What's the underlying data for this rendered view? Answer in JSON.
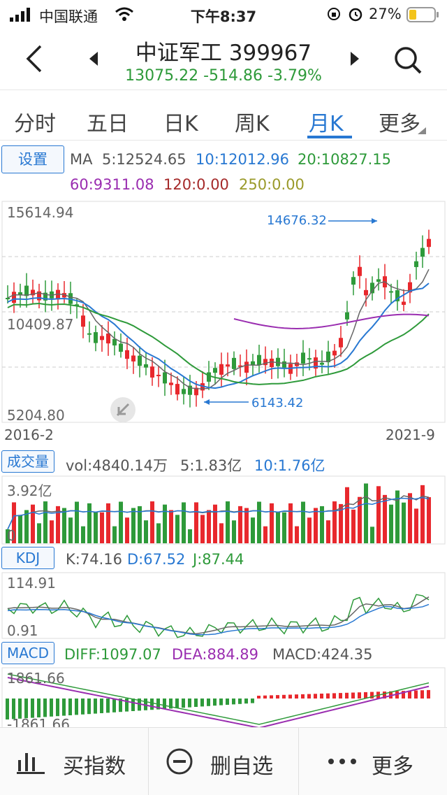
{
  "status_bar": {
    "carrier": "中国联通",
    "time": "下午8:37",
    "battery": "27%"
  },
  "header": {
    "title": "中证军工 399967",
    "quote": "13075.22 -514.86 -3.79%",
    "quote_color": "#2e9a3a"
  },
  "tabs": [
    {
      "label": "分时"
    },
    {
      "label": "五日"
    },
    {
      "label": "日K"
    },
    {
      "label": "周K"
    },
    {
      "label": "月K"
    },
    {
      "label": "更多"
    }
  ],
  "ma": {
    "settings_label": "设置",
    "prefix": "MA",
    "ma5": "5:12524.65",
    "ma10": "10:12012.96",
    "ma20": "20:10827.15",
    "ma60": "60:9311.08",
    "ma120": "120:0.00",
    "ma250": "250:0.00"
  },
  "main_chart": {
    "y_top": "15614.94",
    "y_mid": "10409.87",
    "y_bottom": "5204.80",
    "high_annotation": "14676.32",
    "low_annotation": "6143.42",
    "x_start": "2016-2",
    "x_end": "2021-9"
  },
  "volume": {
    "label": "成交量",
    "vol": "vol:4840.14万",
    "v5": "5:1.83亿",
    "v10": "10:1.76亿",
    "y_top": "3.92亿",
    "y_bottom": "0"
  },
  "kdj": {
    "label": "KDJ",
    "k": "K:74.16",
    "d": "D:67.52",
    "j": "J:87.44",
    "y_top": "114.91",
    "y_bottom": "0.91"
  },
  "macd": {
    "label": "MACD",
    "diff": "DIFF:1097.07",
    "dea": "DEA:884.89",
    "macd": "MACD:424.35",
    "y_top": "1861.66",
    "y_bottom": "-1861.66"
  },
  "bottom_bar": {
    "buy_label": "买指数",
    "remove_label": "删自选",
    "more_label": "更多"
  },
  "colors": {
    "up": "#e8282d",
    "down": "#2e9a3a",
    "blue": "#2878d2",
    "purple": "#9a2db0"
  }
}
